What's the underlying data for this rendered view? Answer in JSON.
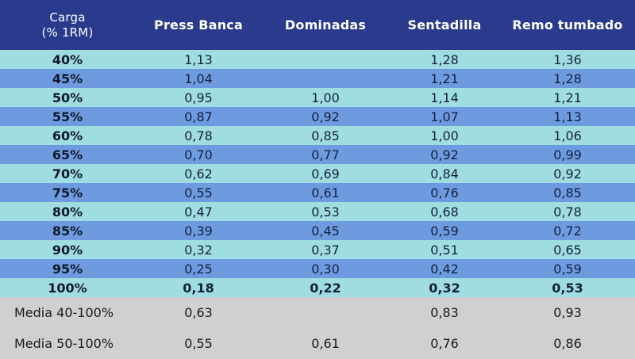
{
  "header": {
    "load_line1": "Carga",
    "load_line2": "(% 1RM)",
    "columns": [
      "Press Banca",
      "Dominadas",
      "Sentadilla",
      "Remo tumbado"
    ]
  },
  "rows": [
    {
      "pct": "40%",
      "values": [
        "1,13",
        "",
        "1,28",
        "1,36"
      ]
    },
    {
      "pct": "45%",
      "values": [
        "1,04",
        "",
        "1,21",
        "1,28"
      ]
    },
    {
      "pct": "50%",
      "values": [
        "0,95",
        "1,00",
        "1,14",
        "1,21"
      ]
    },
    {
      "pct": "55%",
      "values": [
        "0,87",
        "0,92",
        "1,07",
        "1,13"
      ]
    },
    {
      "pct": "60%",
      "values": [
        "0,78",
        "0,85",
        "1,00",
        "1,06"
      ]
    },
    {
      "pct": "65%",
      "values": [
        "0,70",
        "0,77",
        "0,92",
        "0,99"
      ]
    },
    {
      "pct": "70%",
      "values": [
        "0,62",
        "0,69",
        "0,84",
        "0,92"
      ]
    },
    {
      "pct": "75%",
      "values": [
        "0,55",
        "0,61",
        "0,76",
        "0,85"
      ]
    },
    {
      "pct": "80%",
      "values": [
        "0,47",
        "0,53",
        "0,68",
        "0,78"
      ]
    },
    {
      "pct": "85%",
      "values": [
        "0,39",
        "0,45",
        "0,59",
        "0,72"
      ]
    },
    {
      "pct": "90%",
      "values": [
        "0,32",
        "0,37",
        "0,51",
        "0,65"
      ]
    },
    {
      "pct": "95%",
      "values": [
        "0,25",
        "0,30",
        "0,42",
        "0,59"
      ]
    },
    {
      "pct": "100%",
      "values": [
        "0,18",
        "0,22",
        "0,32",
        "0,53"
      ]
    }
  ],
  "summary": [
    {
      "label": "Media 40-100%",
      "values": [
        "0,63",
        "",
        "0,83",
        "0,93"
      ]
    },
    {
      "label": "Media 50-100%",
      "values": [
        "0,55",
        "0,61",
        "0,76",
        "0,86"
      ]
    }
  ],
  "colors": {
    "header_bg": "#2a3a8c",
    "row_light": "#9fdde0",
    "row_dark": "#6e9be0",
    "summary_bg": "#cfd0d1"
  }
}
